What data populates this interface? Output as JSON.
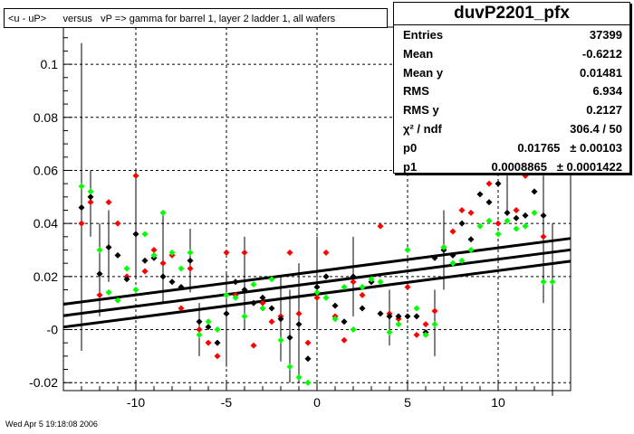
{
  "title": "<u - uP>      versus   vP => gamma for barrel 1, layer 2 ladder 1, all wafers",
  "stats": {
    "name": "duvP2201_pfx",
    "rows": [
      {
        "key": "Entries",
        "value": "37399"
      },
      {
        "key": "Mean",
        "value": "-0.6212"
      },
      {
        "key": "Mean y",
        "value": "0.01481"
      },
      {
        "key": "RMS",
        "value": "6.934"
      },
      {
        "key": "RMS y",
        "value": "0.2127"
      },
      {
        "key": "χ² / ndf",
        "value": "306.4 / 50"
      },
      {
        "key": "p0",
        "value": "0.01765   ± 0.00103"
      },
      {
        "key": "p1",
        "value": "0.0008865   ± 0.0001422"
      }
    ]
  },
  "footer": "Wed Apr  5 19:18:08 2006",
  "chart_data": {
    "type": "scatter",
    "xlim": [
      -14,
      14
    ],
    "ylim": [
      -0.023,
      0.114
    ],
    "xticks": [
      -10,
      -5,
      0,
      5,
      10
    ],
    "xtick_labels": [
      "-10",
      "-5",
      "0",
      "5",
      "10"
    ],
    "yticks": [
      -0.02,
      0,
      0.02,
      0.04,
      0.06,
      0.08,
      0.1
    ],
    "ytick_labels": [
      "-0.02",
      "-0",
      "0.02",
      "0.04",
      "0.06",
      "0.08",
      "0.1"
    ],
    "grid": true,
    "colors": {
      "black": "#000000",
      "red": "#ff0000",
      "green": "#00ff00"
    },
    "fit": {
      "p0": 0.01765,
      "p1": 0.0008865,
      "band": 0.0043
    },
    "series": [
      {
        "color": "red",
        "x": [
          -13,
          -12.5,
          -12,
          -11.5,
          -11,
          -10.5,
          -10,
          -9.5,
          -9,
          -8.5,
          -8,
          -7.5,
          -7,
          -6.5,
          -6,
          -5.5,
          -5,
          -4.5,
          -4,
          -3.5,
          -3,
          -2.5,
          -2,
          -1.5,
          -1,
          -0.5,
          0,
          0.5,
          1,
          1.5,
          2,
          2.5,
          3,
          3.5,
          4,
          4.5,
          5,
          5.5,
          6,
          6.5,
          7,
          7.5,
          8,
          8.5,
          9,
          9.5,
          10,
          10.5,
          11,
          11.5,
          12,
          12.5
        ],
        "y": [
          0.04,
          0.048,
          0.013,
          0.048,
          0.04,
          0.02,
          0.058,
          0.022,
          0.03,
          0.025,
          0.028,
          0.008,
          0.023,
          0,
          -0.005,
          -0.01,
          0.029,
          0.013,
          0.029,
          -0.006,
          0.01,
          0.003,
          0.005,
          0.029,
          0.006,
          -0.005,
          0.012,
          0.029,
          0.005,
          -0.004,
          0.018,
          0.013,
          0.018,
          0.039,
          0.006,
          0.004,
          0.016,
          -0.002,
          0.002,
          0.007,
          0.031,
          0.037,
          0.045,
          0.044,
          0.06,
          0.055,
          0.04,
          0.06,
          0.045,
          0.058,
          0.06,
          0.035
        ]
      },
      {
        "color": "black",
        "x": [
          -13,
          -12.5,
          -12,
          -11.5,
          -11,
          -10.5,
          -10,
          -9.5,
          -9,
          -8.5,
          -8,
          -7.5,
          -7,
          -6.5,
          -6,
          -5.5,
          -5,
          -4.5,
          -4,
          -3.5,
          -3,
          -2.5,
          -2,
          -1.5,
          -1,
          -0.5,
          0,
          0.5,
          1,
          1.5,
          2,
          2.5,
          3,
          3.5,
          4,
          4.5,
          5,
          5.5,
          6,
          6.5,
          7,
          7.5,
          8,
          8.5,
          9,
          9.5,
          10,
          10.5,
          11,
          11.5,
          12,
          12.5
        ],
        "y": [
          0.046,
          0.05,
          0.021,
          0.031,
          0.028,
          0.019,
          0.036,
          0.026,
          0.027,
          0.02,
          0.018,
          0.016,
          0.026,
          0.003,
          0.001,
          -0.005,
          0.006,
          0.018,
          0.015,
          0.01,
          0.012,
          0.008,
          0.004,
          -0.003,
          0.002,
          -0.011,
          0.016,
          0.02,
          0.009,
          0.003,
          0.02,
          0.008,
          0.018,
          0.006,
          0.005,
          0.005,
          0.005,
          0.005,
          -0.001,
          0.027,
          0.03,
          0.028,
          0.04,
          0.034,
          0.051,
          0.048,
          0.055,
          0.044,
          0.042,
          0.043,
          0.052,
          0.043
        ]
      },
      {
        "color": "green",
        "x": [
          -13,
          -12.5,
          -12,
          -11.5,
          -11,
          -10.5,
          -10,
          -9.5,
          -9,
          -8.5,
          -8,
          -7.5,
          -7,
          -6.5,
          -6,
          -5.5,
          -5,
          -4.5,
          -4,
          -3.5,
          -3,
          -2.5,
          -2,
          -1.5,
          -1,
          -0.5,
          0,
          0.5,
          1,
          1.5,
          2,
          2.5,
          3,
          3.5,
          4,
          4.5,
          5,
          5.5,
          6,
          6.5,
          7,
          7.5,
          8,
          8.5,
          9,
          9.5,
          10,
          10.5,
          11,
          11.5,
          12,
          12.5,
          13
        ],
        "y": [
          0.054,
          0.052,
          0.03,
          0.014,
          0.011,
          0.023,
          0.015,
          0.036,
          0.028,
          0.044,
          0.029,
          0.023,
          0.029,
          -0.002,
          0.003,
          0.0,
          0.013,
          0.012,
          0.005,
          0.017,
          0.008,
          0.019,
          -0.004,
          -0.014,
          -0.018,
          -0.02,
          0.014,
          0.012,
          0.004,
          0.016,
          0.0,
          0.016,
          0.019,
          0.018,
          -0.001,
          0.002,
          0.03,
          0.008,
          -0.002,
          0.002,
          0.031,
          0.025,
          0.026,
          0.03,
          0.039,
          0.041,
          0.036,
          0.041,
          0.038,
          0.039,
          0.044,
          0.018,
          0.018
        ]
      }
    ],
    "error_bars": [
      {
        "x": -13,
        "ylo": -0.008,
        "yhi": 0.108
      },
      {
        "x": -12.5,
        "ylo": 0.035,
        "yhi": 0.06
      },
      {
        "x": -12,
        "ylo": 0.005,
        "yhi": 0.04
      },
      {
        "x": -11.5,
        "ylo": 0.018,
        "yhi": 0.045
      },
      {
        "x": -10,
        "ylo": 0.02,
        "yhi": 0.06
      },
      {
        "x": -8.5,
        "ylo": 0.01,
        "yhi": 0.045
      },
      {
        "x": -7,
        "ylo": 0.014,
        "yhi": 0.038
      },
      {
        "x": -6.5,
        "ylo": -0.01,
        "yhi": 0.01
      },
      {
        "x": -5,
        "ylo": -0.014,
        "yhi": 0.022
      },
      {
        "x": -4,
        "ylo": 0.0,
        "yhi": 0.035
      },
      {
        "x": -2,
        "ylo": -0.012,
        "yhi": 0.02
      },
      {
        "x": -1.5,
        "ylo": -0.02,
        "yhi": 0.015
      },
      {
        "x": -1,
        "ylo": -0.02,
        "yhi": 0.025
      },
      {
        "x": 0,
        "ylo": 0.0,
        "yhi": 0.035
      },
      {
        "x": 2,
        "ylo": 0.005,
        "yhi": 0.035
      },
      {
        "x": 4,
        "ylo": -0.006,
        "yhi": 0.015
      },
      {
        "x": 6.5,
        "ylo": -0.01,
        "yhi": 0.015
      },
      {
        "x": 7,
        "ylo": 0.015,
        "yhi": 0.045
      },
      {
        "x": 10.5,
        "ylo": 0.045,
        "yhi": 0.065
      },
      {
        "x": 12.5,
        "ylo": 0.01,
        "yhi": 0.07
      },
      {
        "x": 13,
        "ylo": -0.025,
        "yhi": 0.04
      }
    ]
  }
}
